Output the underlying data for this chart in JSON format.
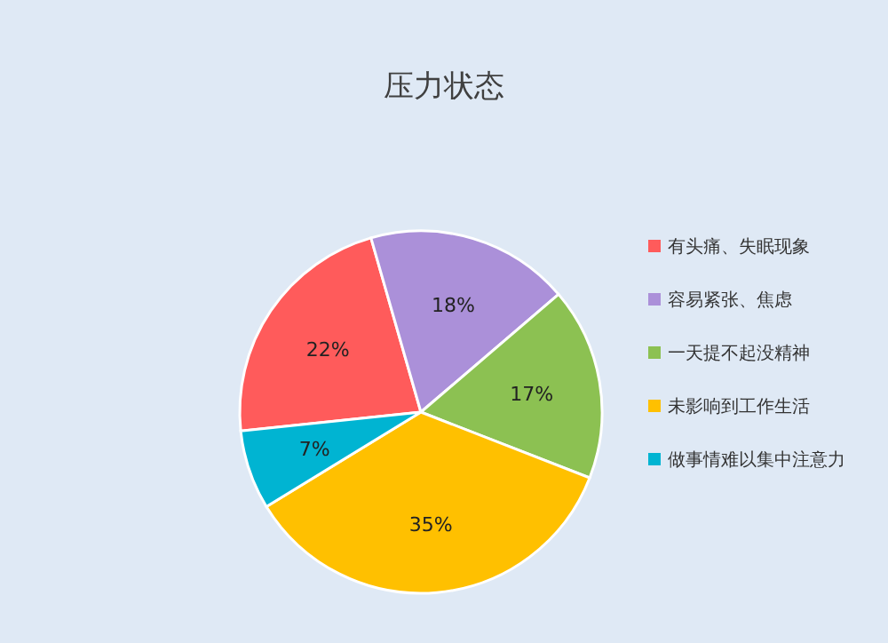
{
  "chart_data": {
    "type": "pie",
    "title": "压力状态",
    "categories": [
      "有头痛、失眠现象",
      "容易紧张、焦虑",
      "一天提不起没精神",
      "未影响到工作生活",
      "做事情难以集中注意力"
    ],
    "values": [
      22,
      18,
      17,
      35,
      7
    ],
    "value_labels": [
      "22%",
      "18%",
      "17%",
      "35%",
      "7%"
    ],
    "colors": [
      "#ff5b5b",
      "#ab90d9",
      "#8cc152",
      "#ffc000",
      "#00b4d2"
    ],
    "legend": "right"
  }
}
